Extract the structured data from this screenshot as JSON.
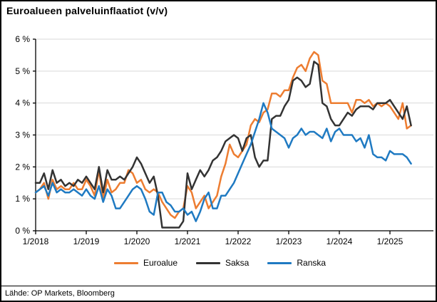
{
  "title": "Euroalueen palveluinflaatiot (v/v)",
  "source": "Lähde: OP Markets, Bloomberg",
  "colors": {
    "euroalue": "#ED7D31",
    "saksa": "#333333",
    "ranska": "#1F7AC2",
    "gridline": "#D9D9D9",
    "axis": "#000000"
  },
  "chart_data": {
    "type": "line",
    "title": "Euroalueen palveluinflaatiot (v/v)",
    "xlabel": "",
    "ylabel": "",
    "ylim": [
      0,
      6
    ],
    "y_tick_labels": [
      "0 %",
      "1 %",
      "2 %",
      "3 %",
      "4 %",
      "5 %",
      "6 %"
    ],
    "x_tick_labels": [
      "1/2018",
      "1/2019",
      "1/2020",
      "1/2021",
      "1/2022",
      "1/2023",
      "1/2024",
      "1/2025"
    ],
    "x_monthly_start": "2018-01",
    "x_monthly_end": "2025-06",
    "grid": "horizontal",
    "legend_position": "bottom-center",
    "series": [
      {
        "name": "Euroalue",
        "color": "#ED7D31",
        "values": [
          1.2,
          1.3,
          1.5,
          1.0,
          1.6,
          1.3,
          1.4,
          1.3,
          1.3,
          1.5,
          1.3,
          1.3,
          1.6,
          1.4,
          1.1,
          1.9,
          1.0,
          1.6,
          1.2,
          1.3,
          1.5,
          1.5,
          1.9,
          1.8,
          1.5,
          1.6,
          1.3,
          1.2,
          1.3,
          1.2,
          0.9,
          0.7,
          0.5,
          0.4,
          0.6,
          0.7,
          1.4,
          1.2,
          0.7,
          0.9,
          1.1,
          0.7,
          0.9,
          1.1,
          1.7,
          2.1,
          2.7,
          2.4,
          2.3,
          2.5,
          2.7,
          3.3,
          3.5,
          3.4,
          3.7,
          3.8,
          4.3,
          4.3,
          4.2,
          4.4,
          4.4,
          4.8,
          5.1,
          5.2,
          5.0,
          5.4,
          5.6,
          5.5,
          4.7,
          4.6,
          4.0,
          4.0,
          4.0,
          4.0,
          4.0,
          3.7,
          4.1,
          4.1,
          4.0,
          4.1,
          3.9,
          4.0,
          3.9,
          4.0,
          3.9,
          3.7,
          3.5,
          4.0,
          3.2,
          3.3
        ]
      },
      {
        "name": "Saksa",
        "color": "#333333",
        "values": [
          1.5,
          1.5,
          1.8,
          1.3,
          1.9,
          1.5,
          1.6,
          1.4,
          1.5,
          1.4,
          1.6,
          1.5,
          1.7,
          1.5,
          1.3,
          2.0,
          1.2,
          1.9,
          1.6,
          1.6,
          1.7,
          1.6,
          1.8,
          2.0,
          2.3,
          2.1,
          1.8,
          1.5,
          1.7,
          1.1,
          0.1,
          0.1,
          0.1,
          0.1,
          0.1,
          0.3,
          1.8,
          1.3,
          1.6,
          1.9,
          1.7,
          1.9,
          2.2,
          2.3,
          2.5,
          2.8,
          2.9,
          3.0,
          2.9,
          2.5,
          2.9,
          3.0,
          2.3,
          2.0,
          2.2,
          2.2,
          3.5,
          3.6,
          3.6,
          3.9,
          4.1,
          4.7,
          4.8,
          4.7,
          4.5,
          4.6,
          5.3,
          5.2,
          4.0,
          3.9,
          3.5,
          3.3,
          3.3,
          3.5,
          3.7,
          3.6,
          3.8,
          3.9,
          3.9,
          3.9,
          3.8,
          4.0,
          4.0,
          4.0,
          4.1,
          3.9,
          3.7,
          3.5,
          3.9,
          3.3
        ]
      },
      {
        "name": "Ranska",
        "color": "#1F7AC2",
        "values": [
          1.2,
          1.3,
          1.4,
          1.1,
          1.5,
          1.2,
          1.3,
          1.2,
          1.2,
          1.3,
          1.2,
          1.1,
          1.3,
          1.1,
          1.0,
          1.4,
          0.9,
          1.3,
          1.1,
          0.7,
          0.7,
          0.9,
          1.1,
          1.3,
          1.4,
          1.3,
          1.0,
          0.6,
          0.5,
          1.2,
          1.2,
          0.9,
          0.8,
          0.6,
          0.6,
          0.7,
          0.5,
          0.6,
          0.3,
          0.6,
          1.0,
          1.2,
          0.7,
          0.7,
          1.1,
          1.1,
          1.3,
          1.5,
          1.8,
          2.1,
          2.4,
          2.7,
          3.1,
          3.5,
          4.0,
          3.7,
          3.2,
          3.1,
          3.0,
          2.9,
          2.6,
          2.9,
          3.0,
          3.2,
          3.0,
          3.1,
          3.1,
          3.0,
          2.9,
          3.2,
          2.8,
          3.1,
          3.2,
          3.0,
          3.0,
          3.0,
          2.8,
          2.9,
          2.6,
          3.0,
          2.4,
          2.3,
          2.3,
          2.2,
          2.5,
          2.4,
          2.4,
          2.4,
          2.3,
          2.1
        ]
      }
    ]
  }
}
